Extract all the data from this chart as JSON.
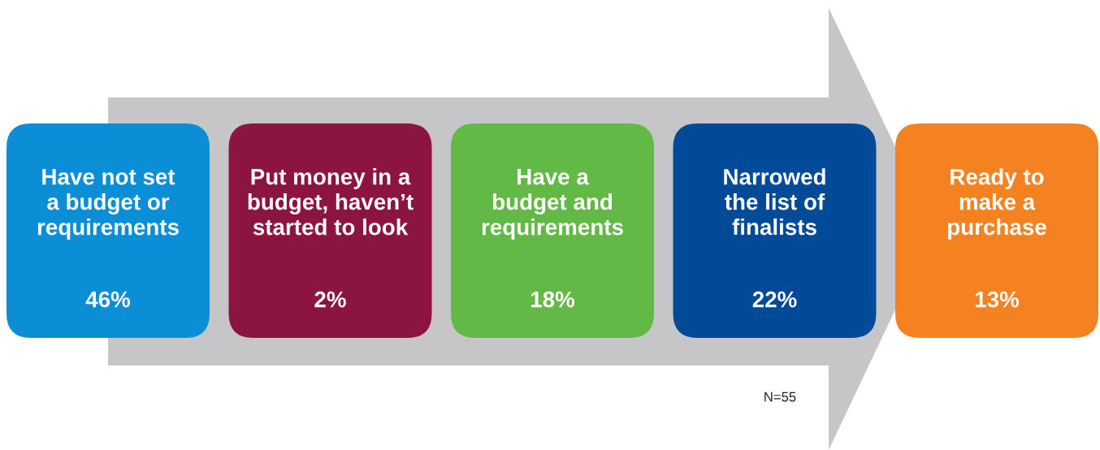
{
  "chart_data": {
    "type": "other",
    "categories": [
      "Have not set\na budget or\nrequirements",
      "Put money in a\nbudget, haven’t\nstarted to look",
      "Have a\nbudget and\nrequirements",
      "Narrowed\nthe list of\nfinalists",
      "Ready to\nmake a\npurchase"
    ],
    "values": [
      46,
      2,
      18,
      22,
      13
    ],
    "value_labels": [
      "46%",
      "2%",
      "18%",
      "22%",
      "13%"
    ],
    "colors": [
      "#0a8fd6",
      "#8c1440",
      "#63b946",
      "#004a97",
      "#f58220"
    ],
    "annotations": [
      "N=55"
    ]
  }
}
